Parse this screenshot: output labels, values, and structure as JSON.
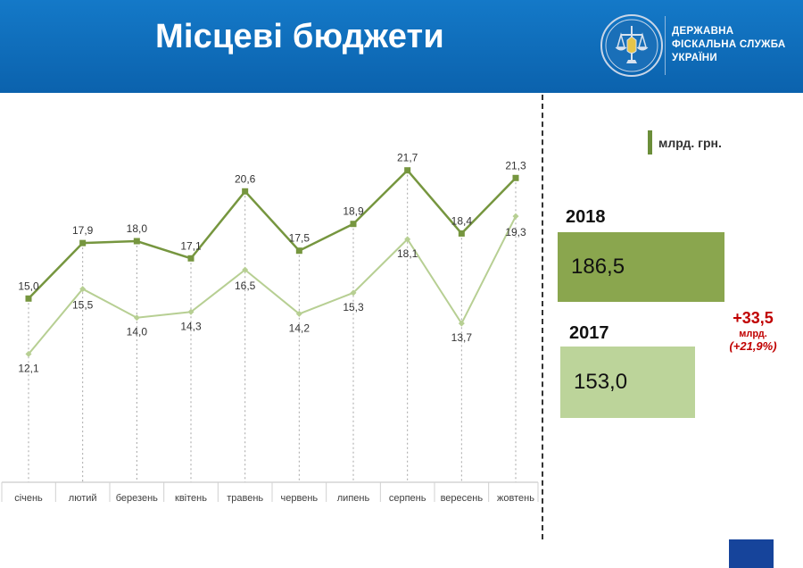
{
  "header": {
    "title": "Місцеві бюджети",
    "org_lines": [
      "ДЕРЖАВНА",
      "ФІСКАЛЬНА СЛУЖБА",
      "УКРАЇНИ"
    ]
  },
  "colors": {
    "header_blue": "#0b62ad",
    "series_2018": "#76963f",
    "series_2017": "#b7cf93",
    "box_2018": "#8aa64e",
    "box_2017": "#bcd49a",
    "increase": "#c00000"
  },
  "legend": {
    "unit": "млрд. грн."
  },
  "chart_data": {
    "type": "line",
    "categories": [
      "січень",
      "лютий",
      "березень",
      "квітень",
      "травень",
      "червень",
      "липень",
      "серпень",
      "вересень",
      "жовтень"
    ],
    "series": [
      {
        "values": [
          15.0,
          17.9,
          18.0,
          17.1,
          20.6,
          17.5,
          18.9,
          21.7,
          18.4,
          21.3
        ],
        "labels": [
          "15,0",
          "17,9",
          "18,0",
          "17,1",
          "20,6",
          "17,5",
          "18,9",
          "21,7",
          "18,4",
          "21,3"
        ]
      },
      {
        "values": [
          12.1,
          15.5,
          14.0,
          14.3,
          16.5,
          14.2,
          15.3,
          18.1,
          13.7,
          19.3
        ],
        "labels": [
          "12,1",
          "15,5",
          "14,0",
          "14,3",
          "16,5",
          "14,2",
          "15,3",
          "18,1",
          "13,7",
          "19,3"
        ]
      }
    ],
    "ylim": [
      5.4,
      23.6
    ],
    "grid": "vertical dashed droplines"
  },
  "summary": {
    "year_2018": "2018",
    "total_2018": "186,5",
    "year_2017": "2017",
    "total_2017": "153,0",
    "diff_value": "+33,5",
    "diff_unit": "млрд.",
    "diff_pct": "(+21,9%)"
  }
}
